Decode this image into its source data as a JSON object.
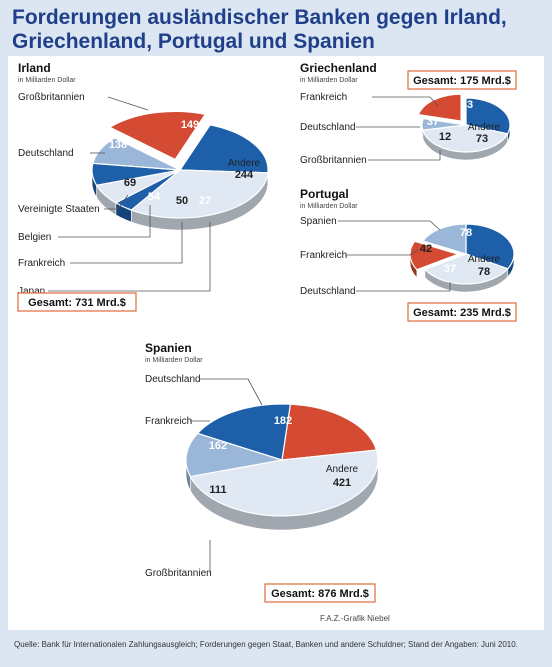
{
  "page": {
    "title_line1": "Forderungen ausländischer Banken gegen Irland,",
    "title_line2": "Griechenland, Portugal und Spanien",
    "credit": "F.A.Z.-Grafik Niebel",
    "source": "Quelle: Bank für Internationalen Zahlungsausgleich; Forderungen gegen Staat, Banken und andere Schuldner; Stand der Angaben: Juni 2010."
  },
  "colors": {
    "title": "#1f3f8a",
    "blue": "#1d5fa8",
    "red": "#d44a32",
    "light_blue": "#9ab6d9",
    "pale": "#dfe8f3",
    "total_border": "#e06a3a"
  },
  "chart_data": [
    {
      "type": "pie",
      "title": "Irland",
      "unit": "in Milliarden Dollar",
      "total_label": "Gesamt: 731 Mrd.$",
      "slices": [
        {
          "label": "Großbritannien",
          "value": 149,
          "color": "#1d5fa8"
        },
        {
          "label": "Andere",
          "value": 244,
          "color": "#dfe8f3"
        },
        {
          "label": "Japan",
          "value": 27,
          "color": "#1d5fa8"
        },
        {
          "label": "Frankreich",
          "value": 50,
          "color": "#dfe8f3"
        },
        {
          "label": "Belgien",
          "value": 54,
          "color": "#1d5fa8"
        },
        {
          "label": "Vereinigte Staaten",
          "value": 69,
          "color": "#9ab6d9"
        },
        {
          "label": "Deutschland",
          "value": 138,
          "color": "#d44a32"
        }
      ]
    },
    {
      "type": "pie",
      "title": "Griechenland",
      "unit": "in Milliarden Dollar",
      "total_label": "Gesamt: 175 Mrd.$",
      "slices": [
        {
          "label": "Frankreich",
          "value": 53,
          "color": "#1d5fa8"
        },
        {
          "label": "Andere",
          "value": 73,
          "color": "#dfe8f3"
        },
        {
          "label": "Großbritannien",
          "value": 12,
          "color": "#9ab6d9"
        },
        {
          "label": "Deutschland",
          "value": 37,
          "color": "#d44a32"
        }
      ]
    },
    {
      "type": "pie",
      "title": "Portugal",
      "unit": "in Milliarden Dollar",
      "total_label": "Gesamt: 235 Mrd.$",
      "slices": [
        {
          "label": "Spanien",
          "value": 78,
          "color": "#1d5fa8"
        },
        {
          "label": "Andere",
          "value": 78,
          "color": "#dfe8f3"
        },
        {
          "label": "Deutschland",
          "value": 37,
          "color": "#d44a32"
        },
        {
          "label": "Frankreich",
          "value": 42,
          "color": "#9ab6d9"
        }
      ]
    },
    {
      "type": "pie",
      "title": "Spanien",
      "unit": "in Milliarden Dollar",
      "total_label": "Gesamt: 876 Mrd.$",
      "slices": [
        {
          "label": "Deutschland",
          "value": 182,
          "color": "#d44a32"
        },
        {
          "label": "Andere",
          "value": 421,
          "color": "#dfe8f3"
        },
        {
          "label": "Großbritannien",
          "value": 111,
          "color": "#9ab6d9"
        },
        {
          "label": "Frankreich",
          "value": 162,
          "color": "#1d5fa8"
        }
      ]
    }
  ]
}
